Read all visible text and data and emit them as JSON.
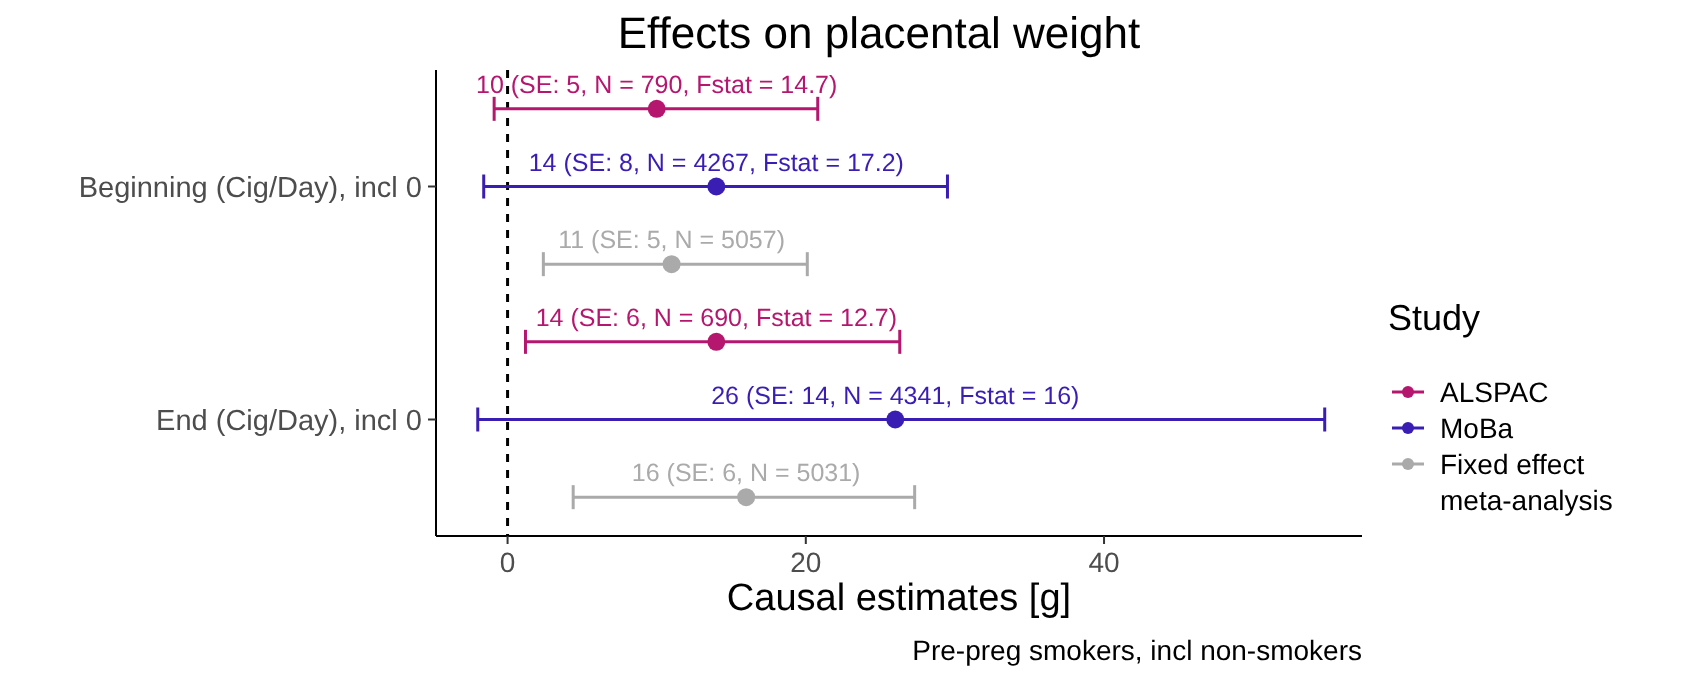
{
  "chart_data": {
    "type": "scatter",
    "orientation": "horizontal",
    "title": "Effects on placental weight",
    "xlabel": "Causal estimates [g]",
    "annotations": [
      "Pre-preg smokers, incl non-smokers"
    ],
    "categories": [
      "Beginning (Cig/Day), incl 0",
      "End (Cig/Day), incl 0"
    ],
    "series": [
      {
        "name": "ALSPAC",
        "color": "#b5176f",
        "values": [
          10,
          14
        ],
        "errors": [
          [
            -0.9,
            20.8
          ],
          [
            1.2,
            26.3
          ]
        ],
        "value_labels": [
          "10 (SE: 5, N = 790, Fstat = 14.7)",
          "14 (SE: 6, N = 690, Fstat = 12.7)"
        ]
      },
      {
        "name": "MoBa",
        "color": "#3a1db3",
        "values": [
          14,
          26
        ],
        "errors": [
          [
            -1.6,
            29.5
          ],
          [
            -2,
            54.8
          ]
        ],
        "value_labels": [
          "14 (SE: 8, N = 4267, Fstat = 17.2)",
          "26 (SE: 14, N = 4341, Fstat = 16)"
        ]
      },
      {
        "name": "Fixed effect meta-analysis",
        "color": "#aaaaaa",
        "values": [
          11,
          16
        ],
        "errors": [
          [
            2.4,
            20.1
          ],
          [
            4.4,
            27.3
          ]
        ],
        "value_labels": [
          "11 (SE: 5, N = 5057)",
          "16 (SE: 6, N = 5031)"
        ]
      }
    ],
    "xlim": [
      -4.8,
      57.3
    ],
    "xticks": [
      0,
      20,
      40
    ],
    "ref_lines": [
      {
        "axis": "x",
        "value": 0,
        "line_style": "dashed",
        "color": "#000000"
      }
    ],
    "legend": "right",
    "legend_title": "Study",
    "marker": "circle",
    "grid": false
  }
}
